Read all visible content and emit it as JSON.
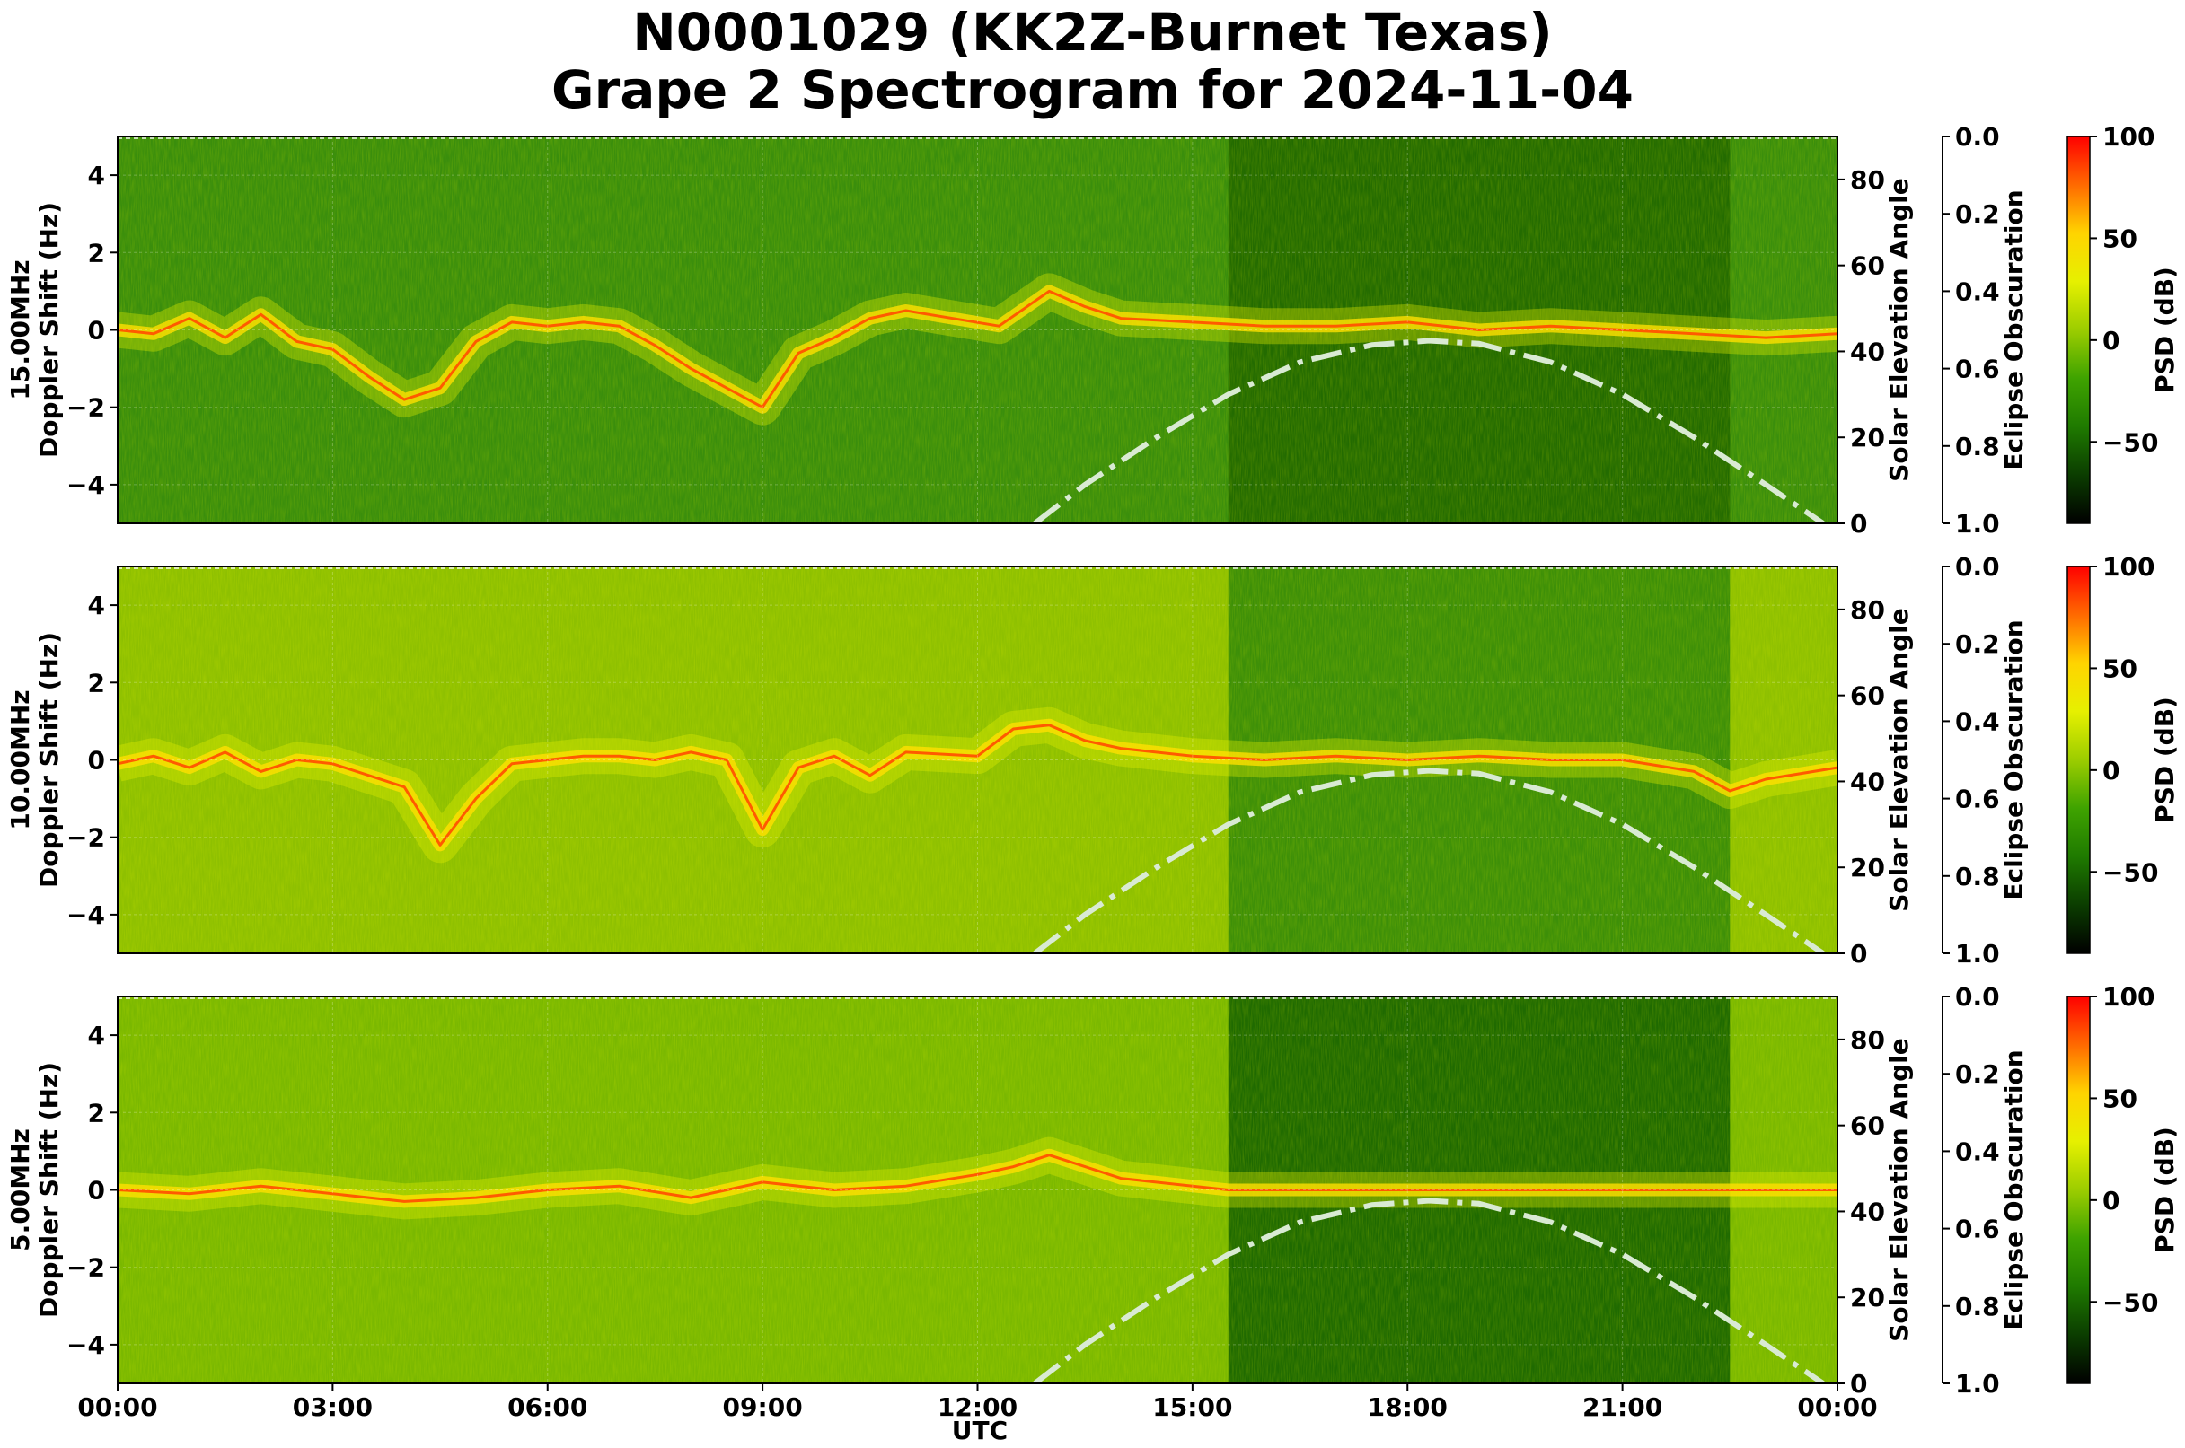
{
  "figure": {
    "title_line1": "N0001029 (KK2Z-Burnet Texas)",
    "title_line2": "Grape 2 Spectrogram for 2024-11-04",
    "x_label": "UTC"
  },
  "chart_data": {
    "type": "heatmap",
    "x_ticks": [
      "00:00",
      "03:00",
      "06:00",
      "09:00",
      "12:00",
      "15:00",
      "18:00",
      "21:00",
      "00:00"
    ],
    "x_range_hours": [
      0,
      24
    ],
    "y_ticks": [
      4,
      2,
      0,
      -2,
      -4
    ],
    "y_range": [
      -5,
      5
    ],
    "elev_ticks": [
      0,
      20,
      40,
      60,
      80
    ],
    "elev_range": [
      0,
      90
    ],
    "obsc_ticks": [
      "0.0",
      "0.2",
      "0.4",
      "0.6",
      "0.8",
      "1.0"
    ],
    "cbar_ticks": [
      100,
      50,
      0,
      -50
    ],
    "cbar_range": [
      -90,
      100
    ],
    "cbar_colors": [
      "#000000",
      "#0b3d00",
      "#1f7a00",
      "#3fa300",
      "#9ccd00",
      "#e6f000",
      "#ffd400",
      "#ff6a00",
      "#ff0000"
    ],
    "solar_elevation_curve": {
      "style": "dash-dot",
      "color": "#d9ead3",
      "hours": [
        12.8,
        13.5,
        14.5,
        15.5,
        16.5,
        17.5,
        18.3,
        19.0,
        20.0,
        21.0,
        22.0,
        23.0,
        23.8
      ],
      "deg": [
        0,
        9,
        20,
        30,
        37.5,
        41.5,
        42.5,
        41.8,
        37.5,
        30,
        20,
        9,
        0
      ]
    },
    "panels": [
      {
        "ylabel_freq": "15.00MHz",
        "ylabel": "Doppler Shift (Hz)",
        "elev_label": "Solar Elevation Angle",
        "obsc_label": "Eclipse Obscuration",
        "cbar_label": "PSD (dB)",
        "bg_day": "#236b00",
        "bg_night": "#3a8e0c",
        "bg_noise": "#2e7d08",
        "trace": {
          "hours": [
            0,
            0.5,
            1,
            1.5,
            2,
            2.5,
            3,
            3.5,
            4,
            4.5,
            5,
            5.5,
            6,
            6.5,
            7,
            7.5,
            8,
            8.5,
            9,
            9.5,
            10,
            10.5,
            11,
            12.3,
            13,
            13.5,
            14,
            15,
            16,
            17,
            18,
            19,
            20,
            21,
            22,
            23,
            24
          ],
          "hz": [
            0,
            -0.1,
            0.3,
            -0.2,
            0.4,
            -0.3,
            -0.5,
            -1.2,
            -1.8,
            -1.5,
            -0.3,
            0.2,
            0.1,
            0.2,
            0.1,
            -0.4,
            -1.0,
            -1.5,
            -2.0,
            -0.6,
            -0.2,
            0.3,
            0.5,
            0.1,
            1.0,
            0.6,
            0.3,
            0.2,
            0.1,
            0.1,
            0.2,
            0.0,
            0.1,
            0.0,
            -0.1,
            -0.2,
            -0.1
          ]
        }
      },
      {
        "ylabel_freq": "10.00MHz",
        "ylabel": "Doppler Shift (Hz)",
        "elev_label": "Solar Elevation Angle",
        "obsc_label": "Eclipse Obscuration",
        "cbar_label": "PSD (dB)",
        "bg_day": "#3d8f08",
        "bg_night": "#8ec000",
        "bg_noise": "#6aab00",
        "trace": {
          "hours": [
            0,
            0.5,
            1,
            1.5,
            2,
            2.5,
            3,
            3.5,
            4,
            4.5,
            5,
            5.5,
            6,
            6.5,
            7,
            7.5,
            8,
            8.5,
            9,
            9.5,
            10,
            10.5,
            11,
            12,
            12.5,
            13,
            13.5,
            14,
            15,
            16,
            17,
            18,
            19,
            20,
            21,
            22,
            22.5,
            23,
            24
          ],
          "hz": [
            -0.1,
            0.1,
            -0.2,
            0.2,
            -0.3,
            0.0,
            -0.1,
            -0.4,
            -0.7,
            -2.2,
            -1.0,
            -0.1,
            0.0,
            0.1,
            0.1,
            0.0,
            0.2,
            0.0,
            -1.8,
            -0.2,
            0.1,
            -0.4,
            0.2,
            0.1,
            0.8,
            0.9,
            0.5,
            0.3,
            0.1,
            0.0,
            0.1,
            0.0,
            0.1,
            0.0,
            0.0,
            -0.3,
            -0.8,
            -0.5,
            -0.2
          ]
        }
      },
      {
        "ylabel_freq": "5.00MHz",
        "ylabel": "Doppler Shift (Hz)",
        "elev_label": "Solar Elevation Angle",
        "obsc_label": "Eclipse Obscuration",
        "cbar_label": "PSD (dB)",
        "bg_day": "#1f6a00",
        "bg_night": "#7ab800",
        "bg_noise": "#5aa200",
        "trace": {
          "hours": [
            0,
            1,
            2,
            3,
            4,
            5,
            6,
            7,
            8,
            9,
            10,
            11,
            12,
            12.5,
            13,
            13.5,
            14,
            15,
            15.5,
            16,
            18,
            20,
            22,
            24
          ],
          "hz": [
            0,
            -0.1,
            0.1,
            -0.1,
            -0.3,
            -0.2,
            0.0,
            0.1,
            -0.2,
            0.2,
            0.0,
            0.1,
            0.4,
            0.6,
            0.9,
            0.6,
            0.3,
            0.1,
            0.0,
            0.0,
            0.0,
            0.0,
            0.0,
            0.0
          ]
        }
      }
    ]
  }
}
